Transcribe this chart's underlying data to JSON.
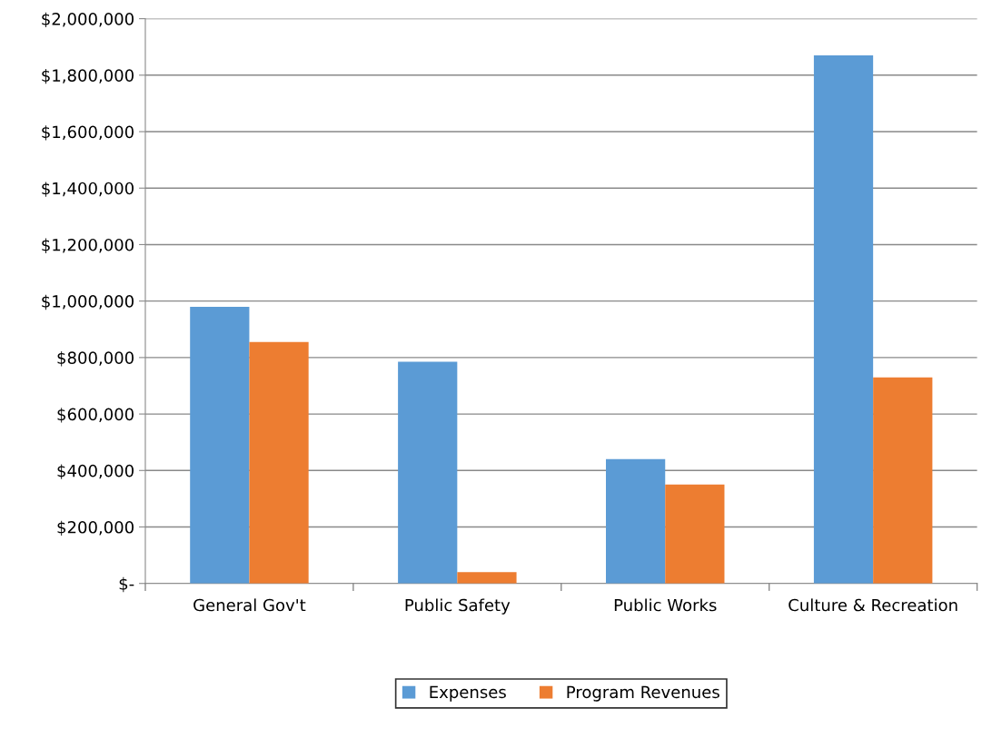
{
  "chart_data": {
    "type": "bar",
    "categories": [
      "General Gov't",
      "Public Safety",
      "Public Works",
      "Culture & Recreation"
    ],
    "series": [
      {
        "name": "Expenses",
        "color": "#5b9bd5",
        "values": [
          980000,
          785000,
          440000,
          1870000
        ]
      },
      {
        "name": "Program Revenues",
        "color": "#ed7d31",
        "values": [
          855000,
          40000,
          350000,
          730000
        ]
      }
    ],
    "ylim": [
      0,
      2000000
    ],
    "yticks": [
      {
        "value": 0,
        "label": "$-"
      },
      {
        "value": 200000,
        "label": "$200,000"
      },
      {
        "value": 400000,
        "label": "$400,000"
      },
      {
        "value": 600000,
        "label": "$600,000"
      },
      {
        "value": 800000,
        "label": "$800,000"
      },
      {
        "value": 1000000,
        "label": "$1,000,000"
      },
      {
        "value": 1200000,
        "label": "$1,200,000"
      },
      {
        "value": 1400000,
        "label": "$1,400,000"
      },
      {
        "value": 1600000,
        "label": "$1,600,000"
      },
      {
        "value": 1800000,
        "label": "$1,800,000"
      },
      {
        "value": 2000000,
        "label": "$2,000,000"
      }
    ],
    "grid": "y",
    "legend": "bottom"
  }
}
